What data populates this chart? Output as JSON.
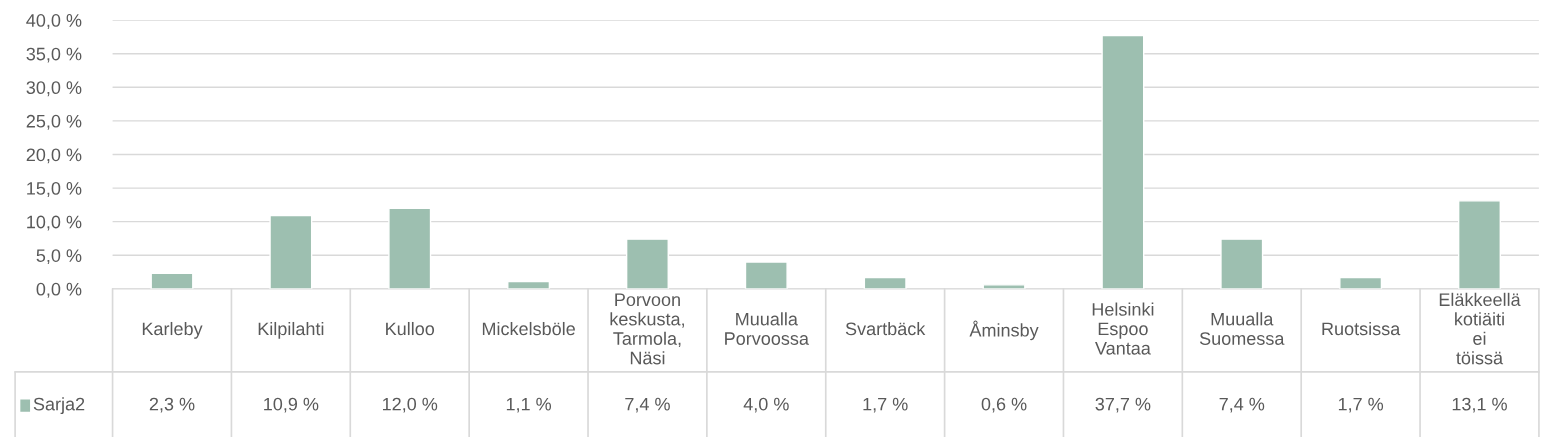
{
  "chart_data": {
    "type": "bar",
    "categories": [
      "Karleby",
      "Kilpilahti",
      "Kulloo",
      "Mickelsböle",
      "Porvoon keskusta, Tarmola, Näsi",
      "Muualla Porvoossa",
      "Svartbäck",
      "Åminsby",
      "Helsinki Espoo Vantaa",
      "Muualla Suomessa",
      "Ruotsissa",
      "Eläkkeellä kotiäiti ei töissä"
    ],
    "series": [
      {
        "name": "Sarja2",
        "color": "#9dbfb0",
        "values": [
          2.3,
          10.9,
          12.0,
          1.1,
          7.4,
          4.0,
          1.7,
          0.6,
          37.7,
          7.4,
          1.7,
          13.1
        ],
        "value_labels": [
          "2,3 %",
          "10,9 %",
          "12,0 %",
          "1,1 %",
          "7,4 %",
          "4,0 %",
          "1,7 %",
          "0,6 %",
          "37,7 %",
          "7,4 %",
          "1,7 %",
          "13,1 %"
        ]
      }
    ],
    "ylim": [
      0,
      40
    ],
    "yticks": [
      {
        "value": 0,
        "label": "0,0 %"
      },
      {
        "value": 5,
        "label": "5,0 %"
      },
      {
        "value": 10,
        "label": "10,0 %"
      },
      {
        "value": 15,
        "label": "15,0 %"
      },
      {
        "value": 20,
        "label": "20,0 %"
      },
      {
        "value": 25,
        "label": "25,0 %"
      },
      {
        "value": 30,
        "label": "30,0 %"
      },
      {
        "value": 35,
        "label": "35,0 %"
      },
      {
        "value": 40,
        "label": "40,0 %"
      }
    ],
    "grid": "y"
  }
}
